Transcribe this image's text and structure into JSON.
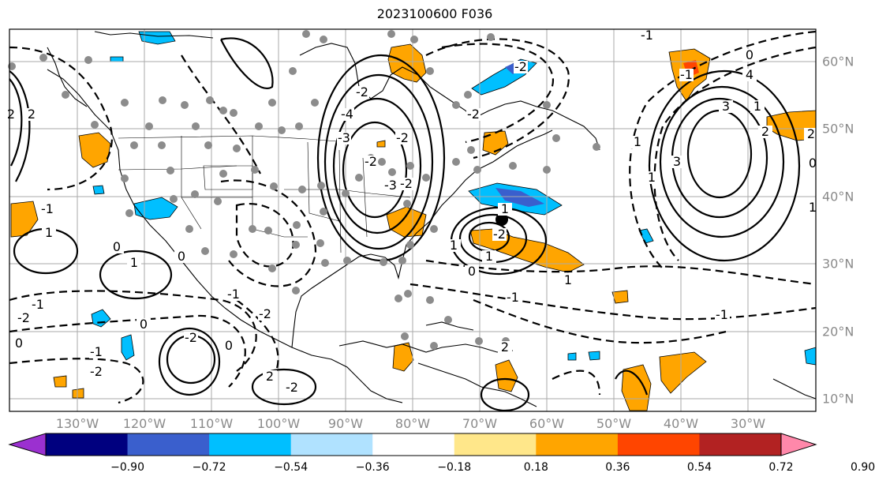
{
  "title": "2023100600 F036",
  "map": {
    "lon_labels": [
      "130°W",
      "120°W",
      "110°W",
      "100°W",
      "90°W",
      "80°W",
      "70°W",
      "60°W",
      "50°W",
      "40°W",
      "30°W"
    ],
    "lat_labels": [
      "60°N",
      "50°N",
      "40°N",
      "30°N",
      "20°N",
      "10°N"
    ],
    "contour_labels": [
      "-2",
      "-1",
      "-1",
      "0",
      "0",
      "-1",
      "-2",
      "0",
      "1",
      "0",
      "-1",
      "-2",
      "-2",
      "0",
      "-2",
      "1",
      "2",
      "0",
      "1",
      "-1",
      "-1",
      "2",
      "1",
      "-2",
      "1",
      "1",
      "-2",
      "-2",
      "-1",
      "1",
      "3",
      "1",
      "-2",
      "-3",
      "-2",
      "-2",
      "-4",
      "-3",
      "-2",
      "0",
      "-1",
      "1",
      "2",
      "3",
      "4",
      "2",
      "0",
      "1",
      "-1",
      "2",
      "2"
    ],
    "colors": {
      "positive_shade": "#ffa500",
      "negative_shade": "#00bfff",
      "strong_positive": "#ff4500",
      "strong_negative": "#3a5fcd",
      "grid": "#aaaaaa",
      "coast": "#000000",
      "station": "#8c8c8c"
    },
    "marker": "storm-center-dot"
  },
  "colorbar": {
    "labels": [
      "−0.90",
      "−0.72",
      "−0.54",
      "−0.36",
      "−0.18",
      "0.18",
      "0.36",
      "0.54",
      "0.72",
      "0.90"
    ],
    "colors": [
      "#9b30d0",
      "#00007f",
      "#3a5fcd",
      "#00bfff",
      "#b0e2ff",
      "#ffffff",
      "#ffe78a",
      "#ffa500",
      "#ff4500",
      "#b22222",
      "#ff88aa"
    ]
  }
}
